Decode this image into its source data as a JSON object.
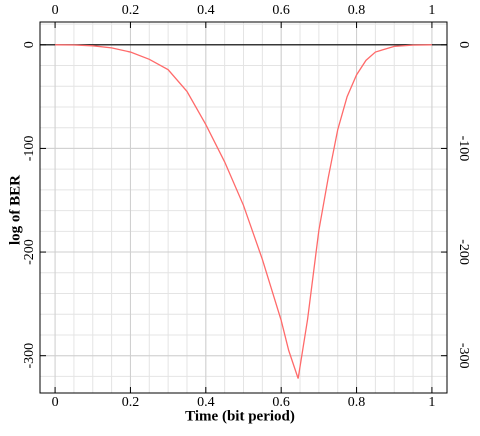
{
  "chart_data": {
    "type": "line",
    "x_label": "Time (bit period)",
    "y_label": "log of BER",
    "x": [
      0,
      0.05,
      0.1,
      0.15,
      0.2,
      0.25,
      0.3,
      0.35,
      0.4,
      0.45,
      0.5,
      0.55,
      0.6,
      0.62,
      0.645,
      0.67,
      0.7,
      0.725,
      0.75,
      0.775,
      0.8,
      0.825,
      0.85,
      0.9,
      0.95,
      1
    ],
    "series": [
      {
        "color": "#ff6a6a",
        "values": [
          0,
          -0.2,
          -1,
          -3,
          -7,
          -14,
          -24,
          -45,
          -77,
          -113,
          -155,
          -207,
          -266,
          -295,
          -322,
          -265,
          -179,
          -128,
          -82,
          -50,
          -29,
          -15,
          -7,
          -1.5,
          -0.3,
          0
        ]
      }
    ],
    "xlim": [
      -0.04,
      1.04
    ],
    "ylim": [
      -336,
      22
    ],
    "xticks": [
      0,
      0.2,
      0.4,
      0.6,
      0.8,
      1
    ],
    "yticks": [
      -300,
      -200,
      -100,
      0
    ],
    "grid": true
  }
}
